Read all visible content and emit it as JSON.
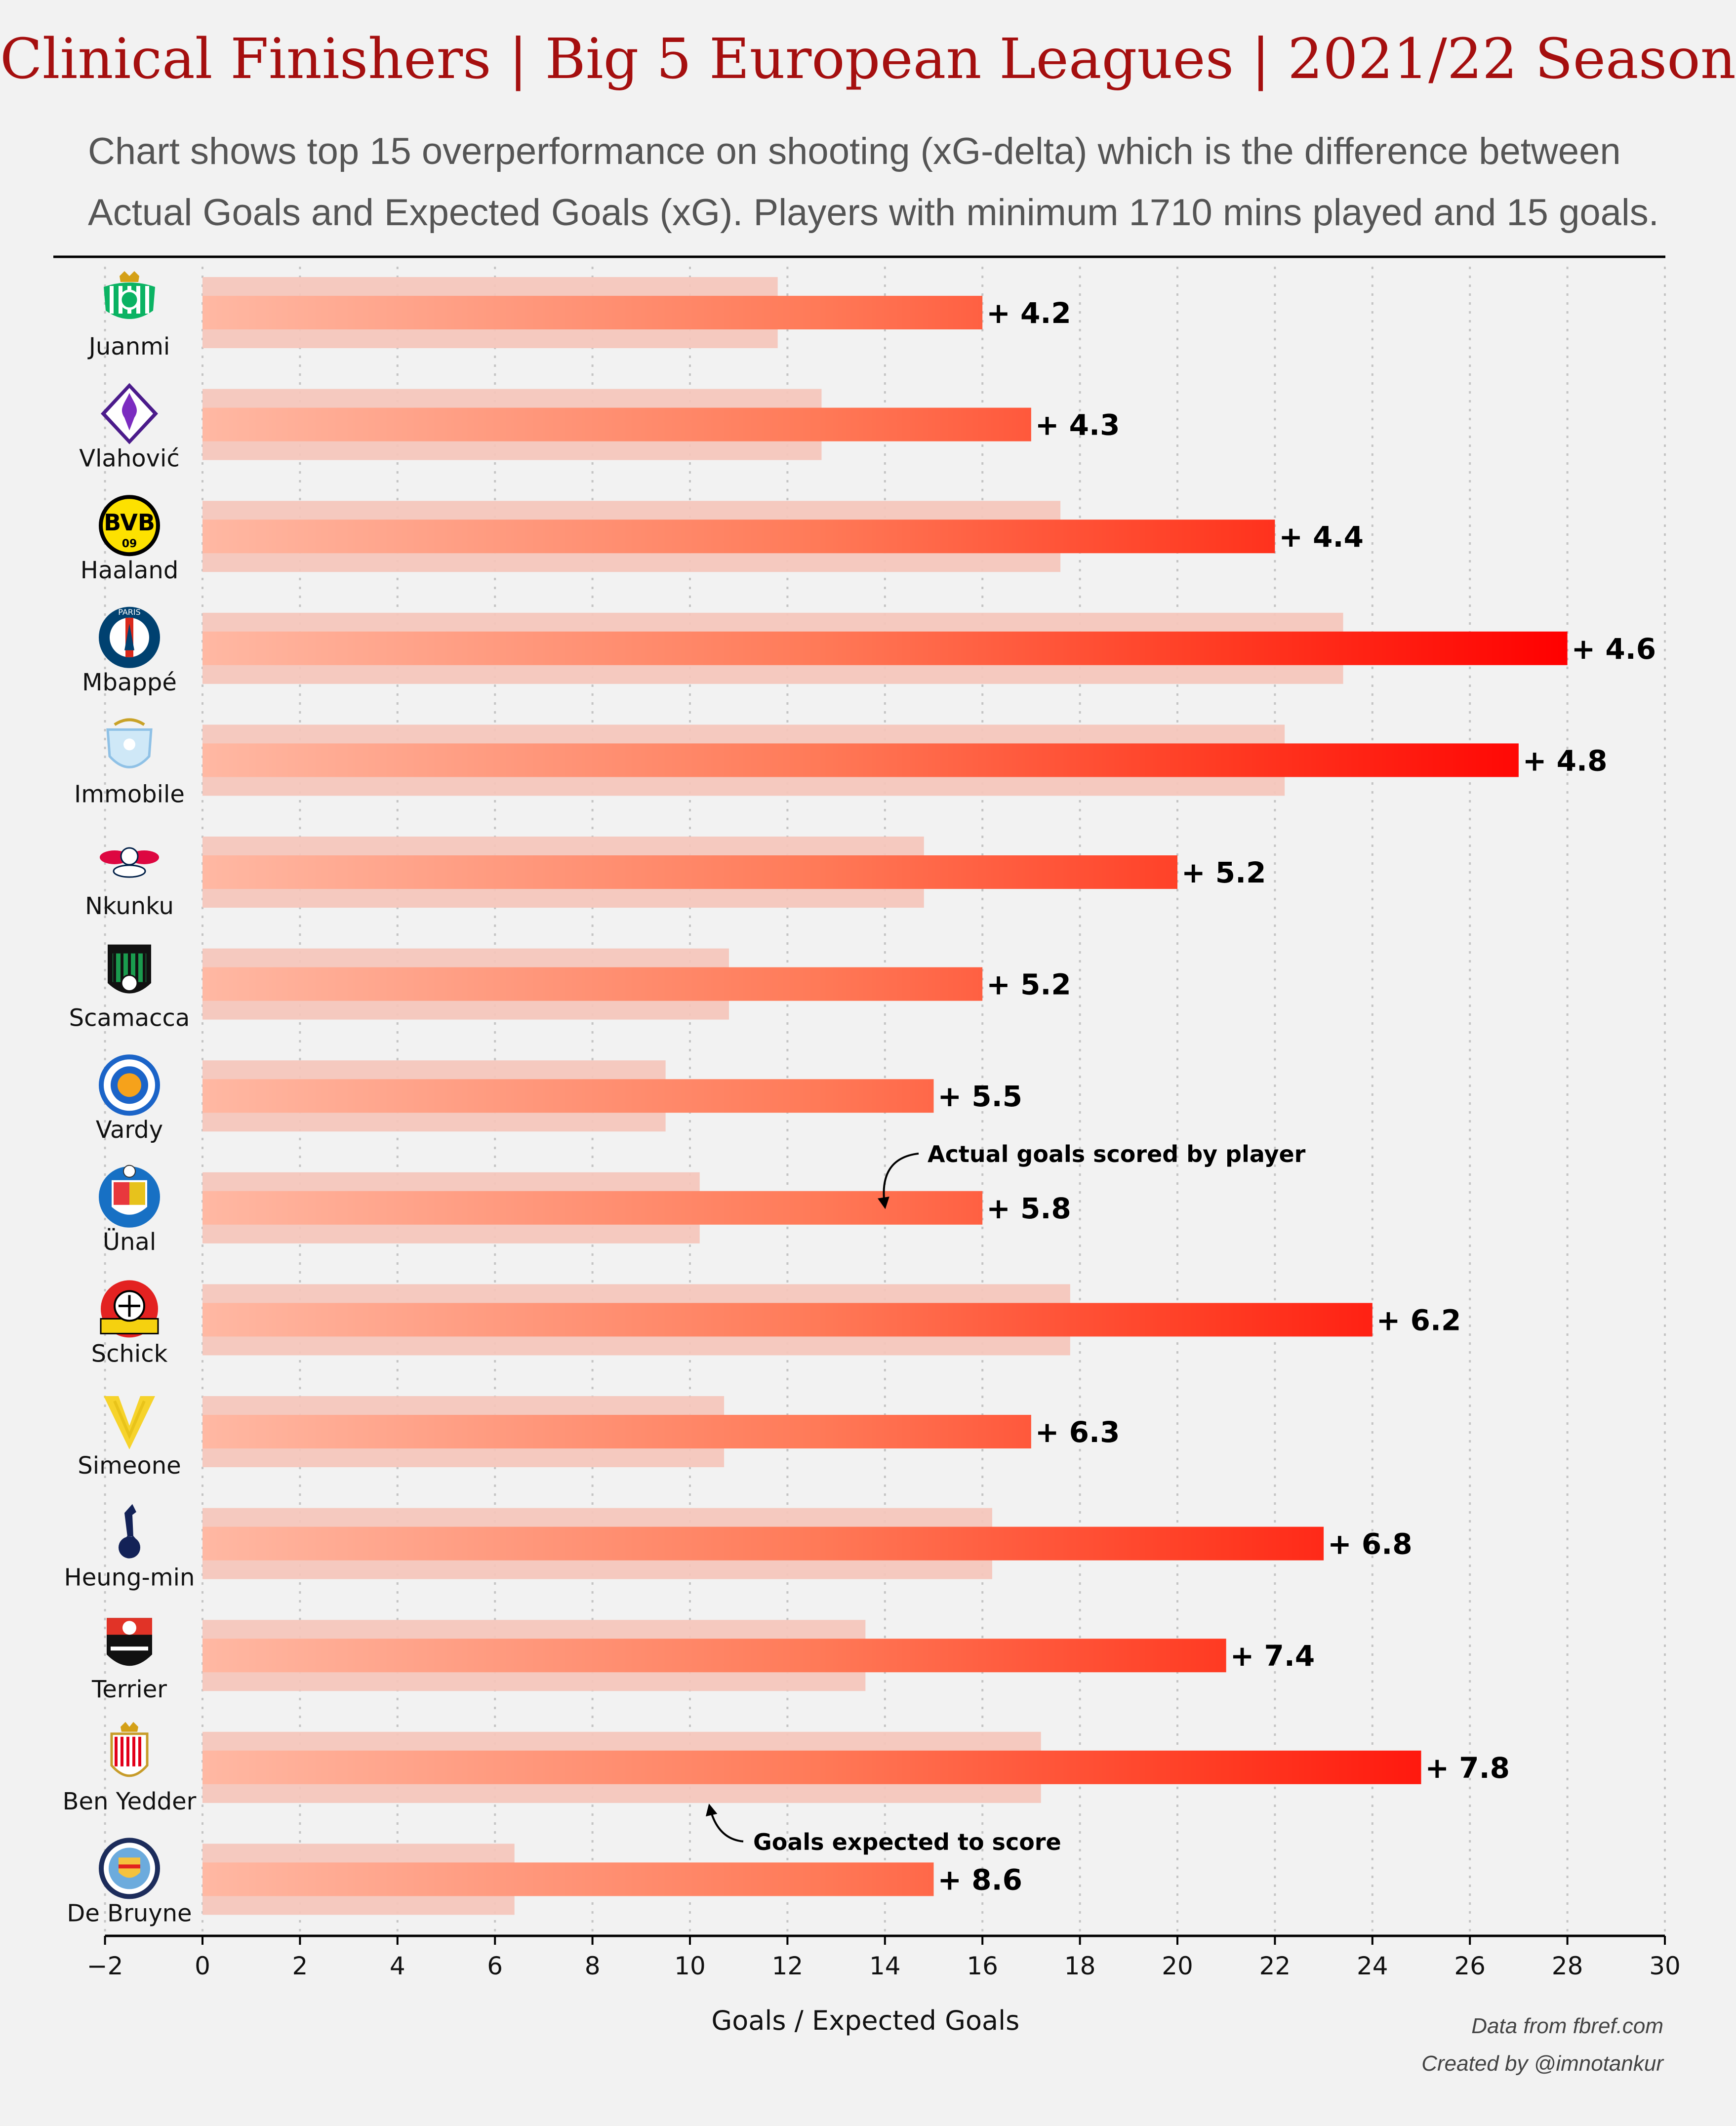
{
  "title": "Clinical Finishers | Big 5 European Leagues | 2021/22 Season",
  "subtitle_lines": [
    "Chart shows top 15 overperformance on shooting (xG-delta) which is the difference between",
    "Actual Goals and Expected Goals (xG). Players with minimum 1710 mins played and 15 goals."
  ],
  "credits": {
    "source": "Data from fbref.com",
    "author": "Created by @imnotankur"
  },
  "colors": {
    "background": "#f2f2f2",
    "title": "#a50f0f",
    "bar_light": "#ffb59e",
    "bar_dark": "#ff0000",
    "xg_bar": "#f4c6bc"
  },
  "chart_data": {
    "type": "bar",
    "orientation": "horizontal",
    "xlabel": "Goals / Expected Goals",
    "ylabel": "",
    "xlim": [
      -2,
      30
    ],
    "xticks": [
      -2,
      0,
      2,
      4,
      6,
      8,
      10,
      12,
      14,
      16,
      18,
      20,
      22,
      24,
      26,
      28,
      30
    ],
    "xtick_labels": [
      "−2",
      "0",
      "2",
      "4",
      "6",
      "8",
      "10",
      "12",
      "14",
      "16",
      "18",
      "20",
      "22",
      "24",
      "26",
      "28",
      "30"
    ],
    "grid": "vertical dotted",
    "categories": [
      "Juanmi",
      "Vlahović",
      "Haaland",
      "Mbappé",
      "Immobile",
      "Nkunku",
      "Scamacca",
      "Vardy",
      "Ünal",
      "Schick",
      "Simeone",
      "Heung-min",
      "Terrier",
      "Ben Yedder",
      "De Bruyne"
    ],
    "club_icons": [
      "real-betis-crest-icon",
      "fiorentina-crest-icon",
      "borussia-dortmund-crest-icon",
      "psg-crest-icon",
      "lazio-crest-icon",
      "rb-leipzig-crest-icon",
      "sassuolo-crest-icon",
      "leicester-city-crest-icon",
      "getafe-crest-icon",
      "bayer-leverkusen-crest-icon",
      "hellas-verona-crest-icon",
      "tottenham-crest-icon",
      "stade-rennais-crest-icon",
      "as-monaco-crest-icon",
      "manchester-city-crest-icon"
    ],
    "series": [
      {
        "values": [
          16,
          17,
          22,
          28,
          27,
          20,
          16,
          15,
          16,
          24,
          17,
          23,
          21,
          25,
          15
        ]
      },
      {
        "values": [
          11.8,
          12.7,
          17.6,
          23.4,
          22.2,
          14.8,
          10.8,
          9.5,
          10.2,
          17.8,
          10.7,
          16.2,
          13.6,
          17.2,
          6.4
        ]
      }
    ],
    "delta_labels": [
      "+ 4.2",
      "+ 4.3",
      "+ 4.4",
      "+ 4.6",
      "+ 4.8",
      "+ 5.2",
      "+ 5.2",
      "+ 5.5",
      "+ 5.8",
      "+ 6.2",
      "+ 6.3",
      "+ 6.8",
      "+ 7.4",
      "+ 7.8",
      "+ 8.6"
    ],
    "annotations": [
      {
        "text": "Actual goals scored by player",
        "row": 8,
        "target_x": 14
      },
      {
        "text": "Goals expected to score",
        "row": 13,
        "target_x": 10.4
      }
    ]
  }
}
